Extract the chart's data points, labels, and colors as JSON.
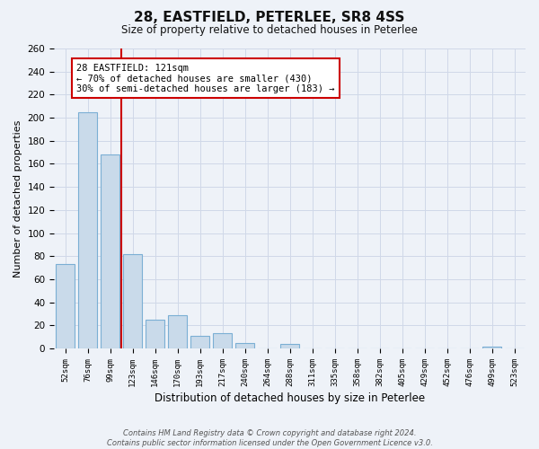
{
  "title": "28, EASTFIELD, PETERLEE, SR8 4SS",
  "subtitle": "Size of property relative to detached houses in Peterlee",
  "xlabel": "Distribution of detached houses by size in Peterlee",
  "ylabel": "Number of detached properties",
  "bar_labels": [
    "52sqm",
    "76sqm",
    "99sqm",
    "123sqm",
    "146sqm",
    "170sqm",
    "193sqm",
    "217sqm",
    "240sqm",
    "264sqm",
    "288sqm",
    "311sqm",
    "335sqm",
    "358sqm",
    "382sqm",
    "405sqm",
    "429sqm",
    "452sqm",
    "476sqm",
    "499sqm",
    "523sqm"
  ],
  "bar_values": [
    73,
    205,
    168,
    82,
    25,
    29,
    11,
    13,
    5,
    0,
    4,
    0,
    0,
    0,
    0,
    0,
    0,
    0,
    0,
    2,
    0
  ],
  "bar_color": "#c9daea",
  "bar_edge_color": "#7bafd4",
  "vline_x": 2.5,
  "vline_color": "#cc0000",
  "annotation_lines": [
    "28 EASTFIELD: 121sqm",
    "← 70% of detached houses are smaller (430)",
    "30% of semi-detached houses are larger (183) →"
  ],
  "annotation_box_color": "#ffffff",
  "annotation_box_edge_color": "#cc0000",
  "ylim": [
    0,
    260
  ],
  "yticks": [
    0,
    20,
    40,
    60,
    80,
    100,
    120,
    140,
    160,
    180,
    200,
    220,
    240,
    260
  ],
  "grid_color": "#d0d8e8",
  "background_color": "#eef2f8",
  "footer_line1": "Contains HM Land Registry data © Crown copyright and database right 2024.",
  "footer_line2": "Contains public sector information licensed under the Open Government Licence v3.0."
}
